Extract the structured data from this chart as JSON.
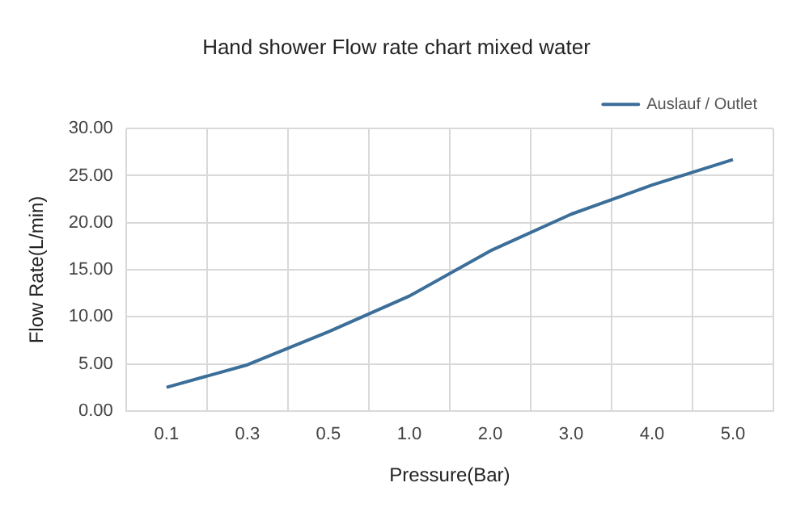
{
  "chart_data": {
    "type": "line",
    "title": "Hand shower Flow rate chart mixed water",
    "xlabel": "Pressure(Bar)",
    "ylabel": "Flow Rate(L/min)",
    "categories": [
      "0.1",
      "0.3",
      "0.5",
      "1.0",
      "2.0",
      "3.0",
      "4.0",
      "5.0"
    ],
    "series": [
      {
        "name": "Auslauf / Outlet",
        "color": "#3b6e99",
        "values": [
          2.5,
          4.9,
          8.4,
          12.2,
          17.0,
          20.9,
          24.0,
          26.7
        ]
      }
    ],
    "ylim": [
      0,
      30
    ],
    "yticks": [
      {
        "value": 0,
        "label": "0.00"
      },
      {
        "value": 5,
        "label": "5.00"
      },
      {
        "value": 10,
        "label": "10.00"
      },
      {
        "value": 15,
        "label": "15.00"
      },
      {
        "value": 20,
        "label": "20.00"
      },
      {
        "value": 25,
        "label": "25.00"
      },
      {
        "value": 30,
        "label": "30.00"
      }
    ],
    "grid": true,
    "legend": "top right",
    "marker": "none",
    "line_style": "solid"
  }
}
